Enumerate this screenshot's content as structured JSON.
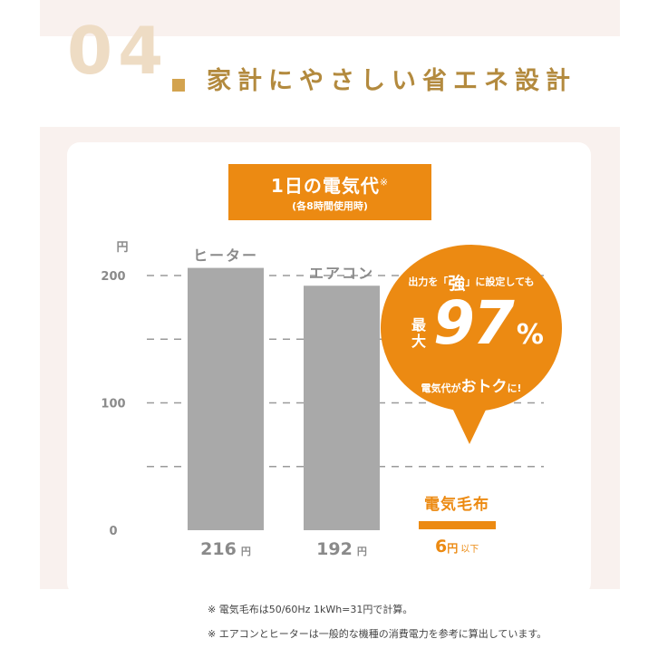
{
  "header": {
    "step_number": "04",
    "title": "家計にやさしい省エネ設計"
  },
  "title_box": {
    "title": "1日の電気代",
    "mark": "※",
    "subtitle": "(各8時間使用時)"
  },
  "chart_data": {
    "type": "bar",
    "y_unit": "円",
    "ylim": [
      0,
      200
    ],
    "yticks": [
      0,
      100,
      200
    ],
    "gridlines": [
      50,
      100,
      150,
      200
    ],
    "grid": true,
    "categories": [
      "ヒーター",
      "エアコン",
      "電気毛布"
    ],
    "values": [
      216,
      192,
      6
    ],
    "value_labels": [
      {
        "value": "216",
        "unit": "円",
        "suffix": ""
      },
      {
        "value": "192",
        "unit": "円",
        "suffix": ""
      },
      {
        "value": "6",
        "unit": "円",
        "suffix": "以下"
      }
    ],
    "colors": {
      "default": "#a9a9a9",
      "highlight": "#ec8a12",
      "grid": "#9a9a9a"
    }
  },
  "callout": {
    "line1_a": "出力を「",
    "line1_b": "強",
    "line1_c": "」に設定しても",
    "max_label": "最大",
    "percent": "97",
    "percent_sign": "%",
    "line3_a": "電気代が",
    "line3_b": "おトク",
    "line3_c": "に!"
  },
  "notes": [
    "※ 電気毛布は50/60Hz 1kWh=31円で計算。",
    "※ エアコンとヒーターは一般的な機種の消費電力を参考に算出しています。"
  ]
}
